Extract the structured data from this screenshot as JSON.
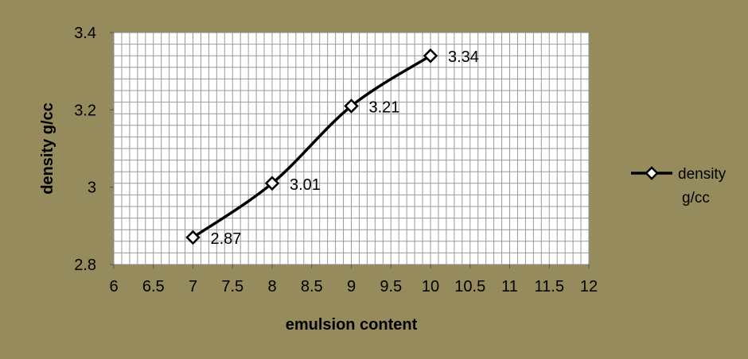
{
  "colors": {
    "chart_background": "#958b5c",
    "plot_background": "#ffffff",
    "gridline": "#9a9a9a",
    "series": "#000000"
  },
  "chart_data": {
    "type": "scatter",
    "mode": "smooth-line-with-markers",
    "marker": "diamond",
    "title": "",
    "xlabel": "emulsion content",
    "ylabel": "density g/cc",
    "xlim": [
      6,
      12
    ],
    "ylim": [
      2.8,
      3.4
    ],
    "xticks": [
      "6",
      "6.5",
      "7",
      "7.5",
      "8",
      "8.5",
      "9",
      "9.5",
      "10",
      "10.5",
      "11",
      "11.5",
      "12"
    ],
    "yticks": [
      "2.8",
      "3",
      "3.2",
      "3.4"
    ],
    "grid": true,
    "legend_position": "right",
    "series": [
      {
        "name": "density g/cc",
        "x": [
          7,
          8,
          9,
          10
        ],
        "y": [
          2.87,
          3.01,
          3.21,
          3.34
        ],
        "labels": [
          "2.87",
          "3.01",
          "3.21",
          "3.34"
        ]
      }
    ]
  }
}
